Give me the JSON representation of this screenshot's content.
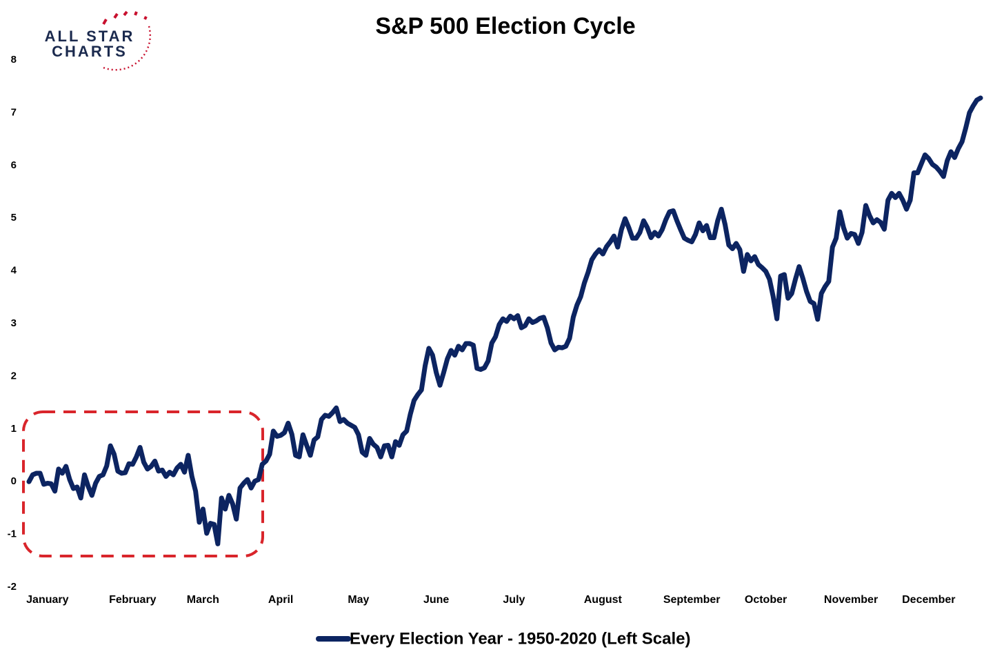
{
  "chart_data": {
    "type": "line",
    "title": "S&P 500 Election Cycle",
    "logo": {
      "line1": "ALL STAR",
      "line2": "CHARTS"
    },
    "categories": [
      null,
      null,
      null,
      null,
      null,
      "January",
      null,
      null,
      null,
      null,
      null,
      null,
      null,
      null,
      null,
      null,
      null,
      null,
      null,
      null,
      null,
      null,
      null,
      null,
      null,
      null,
      null,
      null,
      "February",
      null,
      null,
      null,
      null,
      null,
      null,
      null,
      null,
      null,
      null,
      null,
      null,
      null,
      null,
      null,
      null,
      null,
      null,
      "March",
      null,
      null,
      null,
      null,
      null,
      null,
      null,
      null,
      null,
      null,
      null,
      null,
      null,
      null,
      null,
      null,
      null,
      null,
      null,
      null,
      "April",
      null,
      null,
      null,
      null,
      null,
      null,
      null,
      null,
      null,
      null,
      null,
      null,
      null,
      null,
      null,
      null,
      null,
      null,
      null,
      null,
      "May",
      null,
      null,
      null,
      null,
      null,
      null,
      null,
      null,
      null,
      null,
      null,
      null,
      null,
      null,
      null,
      null,
      null,
      null,
      null,
      null,
      "June",
      null,
      null,
      null,
      null,
      null,
      null,
      null,
      null,
      null,
      null,
      null,
      null,
      null,
      null,
      null,
      null,
      null,
      null,
      null,
      null,
      "July",
      null,
      null,
      null,
      null,
      null,
      null,
      null,
      null,
      null,
      null,
      null,
      null,
      null,
      null,
      null,
      null,
      null,
      null,
      null,
      null,
      null,
      null,
      null,
      "August",
      null,
      null,
      null,
      null,
      null,
      null,
      null,
      null,
      null,
      null,
      null,
      null,
      null,
      null,
      null,
      null,
      null,
      null,
      null,
      null,
      null,
      null,
      null,
      "September",
      null,
      null,
      null,
      null,
      null,
      null,
      null,
      null,
      null,
      null,
      null,
      null,
      null,
      null,
      null,
      null,
      null,
      null,
      null,
      "October",
      null,
      null,
      null,
      null,
      null,
      null,
      null,
      null,
      null,
      null,
      null,
      null,
      null,
      null,
      null,
      null,
      null,
      null,
      null,
      null,
      null,
      null,
      "November",
      null,
      null,
      null,
      null,
      null,
      null,
      null,
      null,
      null,
      null,
      null,
      null,
      null,
      null,
      null,
      null,
      null,
      null,
      null,
      null,
      "December",
      null,
      null,
      null,
      null,
      null,
      null,
      null,
      null,
      null,
      null,
      null,
      null,
      null,
      null
    ],
    "series": [
      {
        "name": "Every Election Year - 1950-2020 (Left Scale)",
        "color": "#0c2461",
        "values": [
          0,
          0.13,
          0.16,
          0.16,
          -0.05,
          -0.03,
          -0.04,
          -0.18,
          0.24,
          0.16,
          0.29,
          0.04,
          -0.13,
          -0.1,
          -0.31,
          0.13,
          -0.09,
          -0.26,
          -0.03,
          0.1,
          0.13,
          0.3,
          0.68,
          0.52,
          0.2,
          0.16,
          0.17,
          0.34,
          0.33,
          0.47,
          0.65,
          0.37,
          0.24,
          0.29,
          0.39,
          0.2,
          0.22,
          0.1,
          0.18,
          0.13,
          0.26,
          0.33,
          0.18,
          0.5,
          0.1,
          -0.18,
          -0.77,
          -0.52,
          -0.98,
          -0.79,
          -0.81,
          -1.18,
          -0.31,
          -0.52,
          -0.26,
          -0.42,
          -0.71,
          -0.12,
          -0.03,
          0.04,
          -0.12,
          0.01,
          0.04,
          0.33,
          0.39,
          0.52,
          0.96,
          0.86,
          0.88,
          0.93,
          1.11,
          0.9,
          0.5,
          0.47,
          0.89,
          0.69,
          0.5,
          0.79,
          0.85,
          1.18,
          1.26,
          1.24,
          1.31,
          1.4,
          1.14,
          1.18,
          1.11,
          1.07,
          1.03,
          0.89,
          0.56,
          0.5,
          0.82,
          0.71,
          0.65,
          0.47,
          0.68,
          0.69,
          0.47,
          0.76,
          0.69,
          0.89,
          0.96,
          1.28,
          1.54,
          1.65,
          1.74,
          2.2,
          2.53,
          2.4,
          2.07,
          1.83,
          2.07,
          2.33,
          2.49,
          2.4,
          2.57,
          2.5,
          2.62,
          2.62,
          2.59,
          2.15,
          2.13,
          2.16,
          2.29,
          2.63,
          2.75,
          2.98,
          3.09,
          3.04,
          3.14,
          3.09,
          3.15,
          2.92,
          2.96,
          3.09,
          3.02,
          3.05,
          3.1,
          3.12,
          2.92,
          2.63,
          2.5,
          2.55,
          2.54,
          2.57,
          2.72,
          3.12,
          3.35,
          3.51,
          3.77,
          3.97,
          4.21,
          4.32,
          4.4,
          4.32,
          4.46,
          4.55,
          4.66,
          4.45,
          4.78,
          4.99,
          4.82,
          4.62,
          4.62,
          4.73,
          4.95,
          4.82,
          4.63,
          4.73,
          4.66,
          4.78,
          4.97,
          5.12,
          5.14,
          4.95,
          4.78,
          4.62,
          4.58,
          4.55,
          4.69,
          4.91,
          4.76,
          4.86,
          4.63,
          4.63,
          4.95,
          5.17,
          4.88,
          4.49,
          4.42,
          4.52,
          4.4,
          3.99,
          4.31,
          4.19,
          4.27,
          4.12,
          4.06,
          3.99,
          3.84,
          3.51,
          3.09,
          3.9,
          3.93,
          3.48,
          3.57,
          3.84,
          4.08,
          3.86,
          3.61,
          3.42,
          3.38,
          3.08,
          3.57,
          3.7,
          3.8,
          4.45,
          4.62,
          5.12,
          4.82,
          4.62,
          4.71,
          4.69,
          4.52,
          4.73,
          5.24,
          5.05,
          4.91,
          4.97,
          4.92,
          4.79,
          5.34,
          5.47,
          5.39,
          5.47,
          5.34,
          5.17,
          5.34,
          5.86,
          5.86,
          6.03,
          6.2,
          6.13,
          6.02,
          5.97,
          5.89,
          5.79,
          6.09,
          6.26,
          6.15,
          6.32,
          6.45,
          6.71,
          7.0,
          7.13,
          7.24,
          7.28
        ]
      }
    ],
    "ylim": [
      -2,
      8
    ],
    "yticks": [
      -2,
      -1,
      0,
      1,
      2,
      3,
      4,
      5,
      6,
      7,
      8
    ],
    "grid": false
  }
}
